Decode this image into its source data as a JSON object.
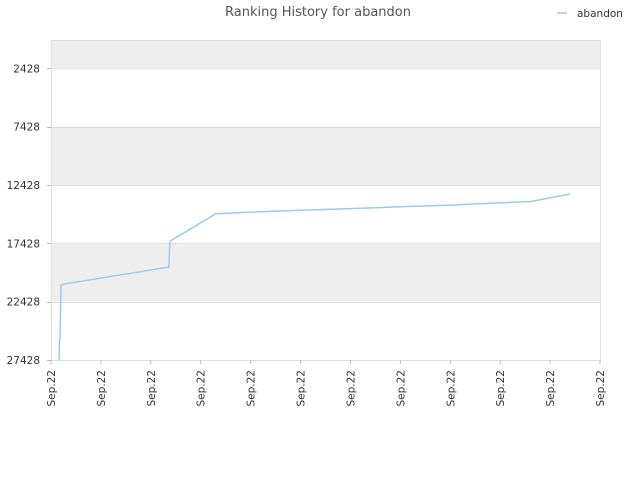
{
  "chart_data": {
    "type": "line",
    "title": "Ranking History for abandon",
    "legend": {
      "position": "top-right"
    },
    "grid": true,
    "y_reversed": true,
    "ylim": [
      27428,
      0
    ],
    "yticks": [
      2428,
      7428,
      12428,
      17428,
      22428,
      27428
    ],
    "ytick_labels": [
      "2428",
      "7428",
      "12428",
      "17428",
      "22428",
      "27428"
    ],
    "xtick_labels": [
      "Sep.22",
      "Sep.22",
      "Sep.22",
      "Sep.22",
      "Sep.22",
      "Sep.22",
      "Sep.22",
      "Sep.22",
      "Sep.22",
      "Sep.22",
      "Sep.22",
      "Sep.22"
    ],
    "xlim": [
      0,
      11
    ],
    "series": [
      {
        "name": "abandon",
        "color": "#99ccf0",
        "x": [
          0.16,
          0.17,
          0.18,
          0.2,
          0.3,
          2.3,
          2.36,
          2.38,
          2.4,
          3.3,
          4.0,
          5.0,
          6.0,
          7.0,
          8.0,
          9.0,
          9.6,
          10.4
        ],
        "y": [
          27428,
          25800,
          25600,
          21000,
          20900,
          19500,
          19500,
          17300,
          17200,
          14900,
          14750,
          14600,
          14450,
          14300,
          14150,
          13950,
          13850,
          13200
        ]
      }
    ]
  }
}
